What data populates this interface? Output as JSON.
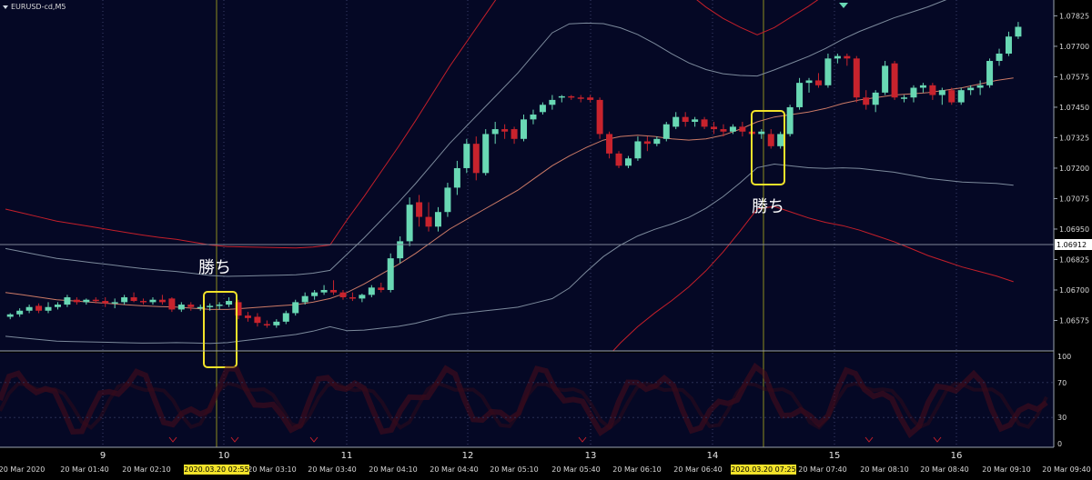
{
  "chart_data": {
    "type": "candlestick",
    "symbol_label": "EURUSD-cd,M5",
    "y_ticks": [
      "1.07825",
      "1.07700",
      "1.07575",
      "1.07450",
      "1.07325",
      "1.07200",
      "1.07075",
      "1.06950",
      "1.06825",
      "1.06700",
      "1.06575"
    ],
    "current_price": "1.06912",
    "ylim": [
      1.0645,
      1.0789
    ],
    "day_labels": [
      "9",
      "10",
      "11",
      "12",
      "13",
      "14",
      "15",
      "16"
    ],
    "time_labels": [
      "20 Mar 2020",
      "20 Mar 01:40",
      "20 Mar 02:10",
      "20 Mar 03:10",
      "20 Mar 03:40",
      "20 Mar 04:10",
      "20 Mar 04:40",
      "20 Mar 05:10",
      "20 Mar 05:40",
      "20 Mar 06:10",
      "20 Mar 06:40",
      "20 Mar 07:40",
      "20 Mar 08:10",
      "20 Mar 08:40",
      "20 Mar 09:10",
      "20 Mar 09:40"
    ],
    "highlight_times": [
      "2020.03.20 02:55",
      "2020.03.20 07:25"
    ],
    "annotations": [
      "勝ち",
      "勝ち"
    ],
    "colors": {
      "bull": "#69d8b4",
      "bear": "#c8232d",
      "middle_band": "#cc7a66",
      "inner_band": "#7c8a9c",
      "outer_band": "#c41f2a",
      "highlight_box": "#f2e22a",
      "vline": "#8a8c20"
    },
    "indicator_ticks": [
      "100",
      "70",
      "30",
      "0"
    ],
    "candles": [
      [
        1.0659,
        1.06605,
        1.0658,
        1.066
      ],
      [
        1.066,
        1.06625,
        1.0659,
        1.06615
      ],
      [
        1.06615,
        1.0664,
        1.06605,
        1.0663
      ],
      [
        1.06635,
        1.06645,
        1.06605,
        1.06615
      ],
      [
        1.06615,
        1.0665,
        1.06605,
        1.0663
      ],
      [
        1.0663,
        1.0665,
        1.0662,
        1.0664
      ],
      [
        1.0664,
        1.0668,
        1.0663,
        1.0667
      ],
      [
        1.0666,
        1.0667,
        1.0664,
        1.0665
      ],
      [
        1.0665,
        1.06665,
        1.0664,
        1.0666
      ],
      [
        1.0666,
        1.0667,
        1.06645,
        1.06655
      ],
      [
        1.06655,
        1.0667,
        1.0663,
        1.06645
      ],
      [
        1.06645,
        1.06665,
        1.06625,
        1.0665
      ],
      [
        1.0665,
        1.0668,
        1.0664,
        1.0667
      ],
      [
        1.0667,
        1.0669,
        1.0665,
        1.06655
      ],
      [
        1.06655,
        1.06665,
        1.0664,
        1.0665
      ],
      [
        1.0665,
        1.0667,
        1.0664,
        1.0666
      ],
      [
        1.0666,
        1.0668,
        1.0664,
        1.0665
      ],
      [
        1.06665,
        1.0667,
        1.0661,
        1.0662
      ],
      [
        1.0662,
        1.0665,
        1.0661,
        1.0664
      ],
      [
        1.0664,
        1.0665,
        1.06615,
        1.0663
      ],
      [
        1.06625,
        1.0664,
        1.06615,
        1.0663
      ],
      [
        1.0663,
        1.06645,
        1.06615,
        1.06635
      ],
      [
        1.06635,
        1.0665,
        1.0662,
        1.0664
      ],
      [
        1.0664,
        1.0667,
        1.0663,
        1.06655
      ],
      [
        1.0665,
        1.0666,
        1.0658,
        1.06595
      ],
      [
        1.06595,
        1.0661,
        1.0657,
        1.06585
      ],
      [
        1.0659,
        1.06605,
        1.0655,
        1.06565
      ],
      [
        1.0656,
        1.06575,
        1.06545,
        1.06555
      ],
      [
        1.06555,
        1.0658,
        1.06545,
        1.0657
      ],
      [
        1.0657,
        1.06615,
        1.0656,
        1.06605
      ],
      [
        1.06605,
        1.0666,
        1.06595,
        1.0665
      ],
      [
        1.0665,
        1.0669,
        1.0664,
        1.06675
      ],
      [
        1.06675,
        1.067,
        1.0666,
        1.0669
      ],
      [
        1.0669,
        1.0672,
        1.0668,
        1.067
      ],
      [
        1.067,
        1.0674,
        1.0668,
        1.0669
      ],
      [
        1.0669,
        1.067,
        1.0666,
        1.0667
      ],
      [
        1.0667,
        1.0669,
        1.06655,
        1.06665
      ],
      [
        1.06665,
        1.06685,
        1.0665,
        1.0668
      ],
      [
        1.0668,
        1.0672,
        1.0667,
        1.0671
      ],
      [
        1.0671,
        1.0673,
        1.0669,
        1.067
      ],
      [
        1.067,
        1.0685,
        1.0669,
        1.0683
      ],
      [
        1.0683,
        1.0692,
        1.0681,
        1.069
      ],
      [
        1.069,
        1.0708,
        1.0688,
        1.0705
      ],
      [
        1.0706,
        1.0709,
        1.0696,
        1.07
      ],
      [
        1.07,
        1.0706,
        1.0694,
        1.0696
      ],
      [
        1.0696,
        1.0704,
        1.0694,
        1.0702
      ],
      [
        1.0702,
        1.0714,
        1.07,
        1.0712
      ],
      [
        1.0712,
        1.0723,
        1.0709,
        1.072
      ],
      [
        1.072,
        1.0732,
        1.0718,
        1.073
      ],
      [
        1.073,
        1.0733,
        1.0715,
        1.0718
      ],
      [
        1.0718,
        1.0736,
        1.0717,
        1.0734
      ],
      [
        1.0734,
        1.0739,
        1.073,
        1.0736
      ],
      [
        1.0736,
        1.0738,
        1.0732,
        1.0735
      ],
      [
        1.0736,
        1.0737,
        1.073,
        1.0732
      ],
      [
        1.0732,
        1.0742,
        1.0731,
        1.074
      ],
      [
        1.074,
        1.0744,
        1.0738,
        1.0742
      ],
      [
        1.0743,
        1.0747,
        1.0742,
        1.0746
      ],
      [
        1.0746,
        1.075,
        1.0744,
        1.0748
      ],
      [
        1.0749,
        1.075,
        1.0747,
        1.07495
      ],
      [
        1.07495,
        1.075,
        1.0748,
        1.0749
      ],
      [
        1.0749,
        1.075,
        1.0747,
        1.07485
      ],
      [
        1.0749,
        1.075,
        1.0747,
        1.0748
      ],
      [
        1.0748,
        1.0749,
        1.0732,
        1.0734
      ],
      [
        1.0734,
        1.0735,
        1.0724,
        1.0726
      ],
      [
        1.0726,
        1.0727,
        1.072,
        1.0721
      ],
      [
        1.0721,
        1.0725,
        1.072,
        1.0724
      ],
      [
        1.0724,
        1.0733,
        1.0723,
        1.0731
      ],
      [
        1.0731,
        1.0733,
        1.0727,
        1.073
      ],
      [
        1.073,
        1.0733,
        1.0729,
        1.0732
      ],
      [
        1.0732,
        1.0739,
        1.0731,
        1.0738
      ],
      [
        1.0737,
        1.0743,
        1.0736,
        1.0741
      ],
      [
        1.0741,
        1.0743,
        1.0737,
        1.0739
      ],
      [
        1.0739,
        1.0741,
        1.0737,
        1.074
      ],
      [
        1.074,
        1.0741,
        1.0736,
        1.0737
      ],
      [
        1.0737,
        1.0739,
        1.0734,
        1.0736
      ],
      [
        1.0736,
        1.0738,
        1.0733,
        1.0735
      ],
      [
        1.0735,
        1.0738,
        1.0734,
        1.0737
      ],
      [
        1.0737,
        1.0739,
        1.0733,
        1.0735
      ],
      [
        1.0735,
        1.0736,
        1.0733,
        1.0734
      ],
      [
        1.0734,
        1.0736,
        1.0732,
        1.0735
      ],
      [
        1.0734,
        1.0736,
        1.0728,
        1.0729
      ],
      [
        1.0729,
        1.0735,
        1.0728,
        1.0734
      ],
      [
        1.0734,
        1.0746,
        1.0733,
        1.0745
      ],
      [
        1.0745,
        1.0757,
        1.0744,
        1.0755
      ],
      [
        1.0755,
        1.0757,
        1.0751,
        1.0756
      ],
      [
        1.0756,
        1.0759,
        1.0753,
        1.0754
      ],
      [
        1.0754,
        1.0767,
        1.0753,
        1.0765
      ],
      [
        1.0765,
        1.0767,
        1.0763,
        1.0766
      ],
      [
        1.0766,
        1.0767,
        1.0762,
        1.0765
      ],
      [
        1.0765,
        1.0766,
        1.0747,
        1.0749
      ],
      [
        1.0749,
        1.0752,
        1.0744,
        1.0746
      ],
      [
        1.0746,
        1.0752,
        1.0743,
        1.0751
      ],
      [
        1.0751,
        1.0764,
        1.075,
        1.0762
      ],
      [
        1.0763,
        1.0764,
        1.0748,
        1.0749
      ],
      [
        1.0749,
        1.075,
        1.0747,
        1.0749
      ],
      [
        1.0749,
        1.0754,
        1.0747,
        1.0753
      ],
      [
        1.0753,
        1.0755,
        1.0751,
        1.0754
      ],
      [
        1.0754,
        1.0755,
        1.0748,
        1.075
      ],
      [
        1.075,
        1.0753,
        1.0746,
        1.0752
      ],
      [
        1.0752,
        1.0753,
        1.0746,
        1.0747
      ],
      [
        1.0747,
        1.0753,
        1.0746,
        1.0752
      ],
      [
        1.0752,
        1.0754,
        1.075,
        1.0753
      ],
      [
        1.0753,
        1.0756,
        1.075,
        1.0754
      ],
      [
        1.0754,
        1.0765,
        1.0753,
        1.0764
      ],
      [
        1.0764,
        1.0769,
        1.0762,
        1.0767
      ],
      [
        1.0767,
        1.0776,
        1.0766,
        1.0774
      ],
      [
        1.0774,
        1.078,
        1.0773,
        1.0778
      ]
    ],
    "middle_band": [
      1.0669,
      1.0668,
      1.0667,
      1.0666,
      1.06655,
      1.0665,
      1.06645,
      1.0664,
      1.06635,
      1.06632,
      1.0663,
      1.06625,
      1.0662,
      1.0662,
      1.06625,
      1.0663,
      1.06635,
      1.0664,
      1.0665,
      1.06665,
      1.0669,
      1.06725,
      1.06765,
      1.06805,
      1.0685,
      1.069,
      1.0695,
      1.0699,
      1.0703,
      1.0707,
      1.0711,
      1.0716,
      1.0721,
      1.0725,
      1.07285,
      1.07315,
      1.0733,
      1.07335,
      1.0733,
      1.0732,
      1.07315,
      1.0732,
      1.07335,
      1.0736,
      1.0739,
      1.0741,
      1.0742,
      1.0743,
      1.07445,
      1.07465,
      1.0748,
      1.0749,
      1.075,
      1.07505,
      1.0751,
      1.0752,
      1.0753,
      1.07545,
      1.0756,
      1.0757
    ]
  }
}
